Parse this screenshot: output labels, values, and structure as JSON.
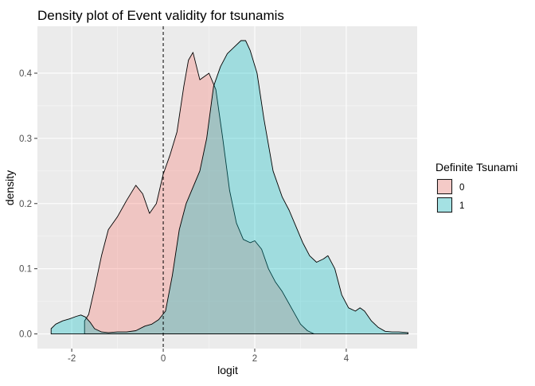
{
  "chart_data": {
    "type": "area",
    "title": "Density plot of Event validity for tsunamis",
    "xlabel": "logit",
    "ylabel": "density",
    "xlim": [
      -2.75,
      5.55
    ],
    "ylim": [
      -0.0225,
      0.472
    ],
    "x_ticks": [
      -2,
      0,
      2,
      4
    ],
    "x_tick_labels": [
      "-2",
      "0",
      "2",
      "4"
    ],
    "y_ticks": [
      0.0,
      0.1,
      0.2,
      0.3,
      0.4
    ],
    "y_tick_labels": [
      "0.0",
      "0.1",
      "0.2",
      "0.3",
      "0.4"
    ],
    "vline_x": 0,
    "grid": true,
    "legend": {
      "title": "Definite Tsunami",
      "position": "right"
    },
    "series": [
      {
        "name": "0",
        "color": "#F8766D",
        "x": [
          -1.72,
          -1.63,
          -1.5,
          -1.35,
          -1.2,
          -1.0,
          -0.8,
          -0.6,
          -0.45,
          -0.3,
          -0.15,
          0.0,
          0.15,
          0.3,
          0.45,
          0.55,
          0.65,
          0.8,
          1.0,
          1.15,
          1.3,
          1.45,
          1.6,
          1.75,
          1.9,
          2.0,
          2.15,
          2.3,
          2.45,
          2.6,
          2.8,
          3.0,
          3.15,
          3.3
        ],
        "y": [
          0.02,
          0.03,
          0.07,
          0.12,
          0.16,
          0.18,
          0.205,
          0.228,
          0.215,
          0.185,
          0.2,
          0.245,
          0.275,
          0.31,
          0.38,
          0.42,
          0.432,
          0.39,
          0.4,
          0.375,
          0.3,
          0.22,
          0.17,
          0.145,
          0.14,
          0.143,
          0.13,
          0.1,
          0.08,
          0.065,
          0.04,
          0.015,
          0.005,
          0.0
        ]
      },
      {
        "name": "1",
        "color": "#00BFC4",
        "x": [
          -2.45,
          -2.35,
          -2.2,
          -2.05,
          -1.9,
          -1.8,
          -1.7,
          -1.6,
          -1.5,
          -1.35,
          -1.2,
          -1.0,
          -0.8,
          -0.6,
          -0.4,
          -0.25,
          -0.1,
          0.05,
          0.2,
          0.35,
          0.5,
          0.65,
          0.8,
          0.95,
          1.1,
          1.25,
          1.4,
          1.55,
          1.7,
          1.8,
          1.9,
          2.05,
          2.2,
          2.4,
          2.6,
          2.75,
          2.9,
          3.05,
          3.2,
          3.35,
          3.5,
          3.6,
          3.75,
          3.9,
          4.05,
          4.2,
          4.3,
          4.4,
          4.55,
          4.7,
          4.85,
          5.0,
          5.15,
          5.35
        ],
        "y": [
          0.008,
          0.015,
          0.02,
          0.023,
          0.027,
          0.029,
          0.026,
          0.018,
          0.008,
          0.003,
          0.002,
          0.003,
          0.003,
          0.005,
          0.012,
          0.015,
          0.022,
          0.035,
          0.09,
          0.16,
          0.2,
          0.225,
          0.25,
          0.3,
          0.38,
          0.41,
          0.43,
          0.44,
          0.45,
          0.45,
          0.435,
          0.4,
          0.33,
          0.25,
          0.21,
          0.19,
          0.165,
          0.14,
          0.12,
          0.11,
          0.115,
          0.12,
          0.1,
          0.06,
          0.04,
          0.035,
          0.04,
          0.035,
          0.02,
          0.01,
          0.004,
          0.003,
          0.003,
          0.002
        ]
      }
    ]
  }
}
